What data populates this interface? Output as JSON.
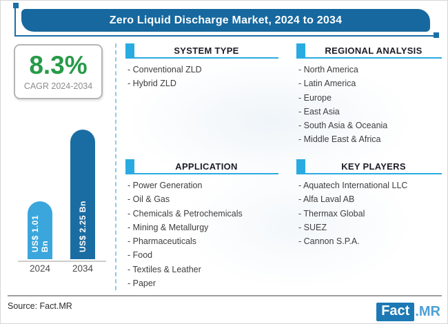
{
  "title_bar": {
    "text": "Zero Liquid Discharge Market, 2024 to 2034",
    "bg_color": "#16689E",
    "text_color": "#ffffff"
  },
  "cagr_card": {
    "value": "8.3%",
    "caption": "CAGR 2024-2034",
    "value_color": "#279A48"
  },
  "chart_data": {
    "type": "bar",
    "categories": [
      "2024",
      "2034"
    ],
    "values": [
      1.01,
      2.25
    ],
    "unit": "US$ Bn",
    "bar_labels": [
      "US$ 1.01 Bn",
      "US$ 2.25 Bn"
    ],
    "bar_colors": [
      "#3BA6DC",
      "#1A6DA2"
    ],
    "ylim": [
      0,
      2.25
    ],
    "grid": false,
    "title": "",
    "xlabel": "",
    "ylabel": ""
  },
  "sections": [
    {
      "title": "SYSTEM TYPE",
      "items": [
        "Conventional ZLD",
        "Hybrid ZLD"
      ]
    },
    {
      "title": "REGIONAL ANALYSIS",
      "items": [
        "North America",
        "Latin America",
        "Europe",
        "East Asia",
        "South Asia & Oceania",
        "Middle East & Africa"
      ]
    },
    {
      "title": "APPLICATION",
      "items": [
        "Power Generation",
        "Oil & Gas",
        "Chemicals & Petrochemicals",
        "Mining & Metallurgy",
        "Pharmaceuticals",
        "Food",
        "Textiles & Leather",
        "Paper"
      ]
    },
    {
      "title": "KEY PLAYERS",
      "items": [
        "Aquatech International LLC",
        "Alfa Laval AB",
        "Thermax Global",
        "SUEZ",
        "Cannon S.P.A."
      ]
    }
  ],
  "accent_colors": {
    "light_blue": "#29ABE2",
    "dark_blue": "#16689E",
    "divider_blue": "#8FCBE8"
  },
  "footer": {
    "source": "Source: Fact.MR",
    "logo_fact": "Fact",
    "logo_mr": ".MR"
  }
}
